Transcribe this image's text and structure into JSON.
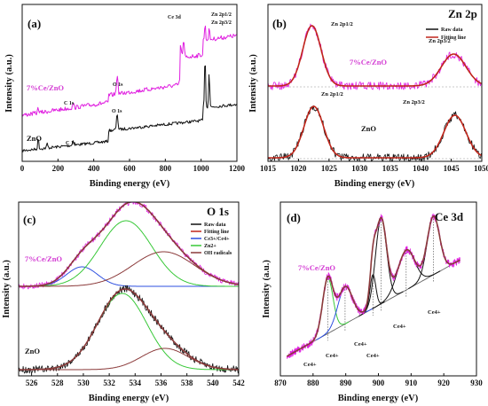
{
  "colors": {
    "magenta": "#e020e0",
    "black": "#111111",
    "red": "#c0261b",
    "brown": "#8b3a3a",
    "green": "#37c837",
    "blue": "#2d4fe0",
    "sample_label": "#d33bd3"
  },
  "chart_data": [
    {
      "panel": "(a)",
      "type": "line",
      "title": "",
      "xlabel": "Binding energy (eV)",
      "ylabel": "Intensity (a.u.)",
      "xlim": [
        0,
        1200
      ],
      "xticks": [
        "0",
        "200",
        "400",
        "600",
        "800",
        "1000",
        "1200"
      ],
      "grid": false,
      "series": [
        {
          "name": "7%Ce/ZnO",
          "values": []
        },
        {
          "name": "ZnO",
          "values": []
        }
      ],
      "annotations": [
        "C 1s",
        "O 1s",
        "Ce 3d",
        "Zn 2p1/2",
        "Zn 2p3/2",
        "C 1s",
        "O 1s"
      ],
      "sample_labels": [
        "7%Ce/ZnO",
        "ZnO"
      ]
    },
    {
      "panel": "(b)",
      "type": "line",
      "title": "Zn 2p",
      "xlabel": "Binding energy (eV)",
      "ylabel": "Intensity (a.u.)",
      "xlim": [
        1015,
        1050
      ],
      "xticks": [
        "1015",
        "1020",
        "1025",
        "1030",
        "1035",
        "1040",
        "1045",
        "1050"
      ],
      "grid": false,
      "legend": [
        "Raw data",
        "Fitting line"
      ],
      "legend_position": "top-right",
      "peaks": {
        "Zn 2p1/2": 1022.3,
        "Zn 2p3/2": 1045.4
      },
      "annotations": [
        "Zn 2p1/2",
        "Zn 2p3/2",
        "Zn 2p1/2",
        "Zn 2p3/2"
      ],
      "sample_labels": [
        "7%Ce/ZnO",
        "ZnO"
      ]
    },
    {
      "panel": "(c)",
      "type": "line",
      "title": "O 1s",
      "xlabel": "Binding energy (eV)",
      "ylabel": "Intensity (a.u.)",
      "xlim": [
        525,
        542
      ],
      "xticks": [
        "526",
        "528",
        "530",
        "532",
        "534",
        "536",
        "538",
        "540",
        "542"
      ],
      "grid": false,
      "legend": [
        "Raw data",
        "Fitting line",
        "Ce3+/Ce4+",
        "Zn2+",
        "OH radicals"
      ],
      "legend_position": "top-right",
      "peaks": {
        "Ce3+/Ce4+": 529.8,
        "Zn2+": 533.3,
        "OH radicals": 536.2
      },
      "sample_labels": [
        "7%Ce/ZnO",
        "ZnO"
      ]
    },
    {
      "panel": "(d)",
      "type": "line",
      "title": "Ce 3d",
      "xlabel": "Binding energy (eV)",
      "ylabel": "Intensity (a.u.)",
      "xlim": [
        870,
        930
      ],
      "xticks": [
        "870",
        "880",
        "890",
        "900",
        "910",
        "920",
        "930"
      ],
      "grid": false,
      "peaks": [
        884.5,
        889.8,
        898.3,
        900.6,
        908.5,
        916.5
      ],
      "annotations": [
        "Ce4+",
        "Ce4+",
        "Ce4+",
        "Ce4+",
        "Ce4+",
        "Ce4+"
      ],
      "sample_labels": [
        "7%Ce/ZnO"
      ]
    }
  ]
}
